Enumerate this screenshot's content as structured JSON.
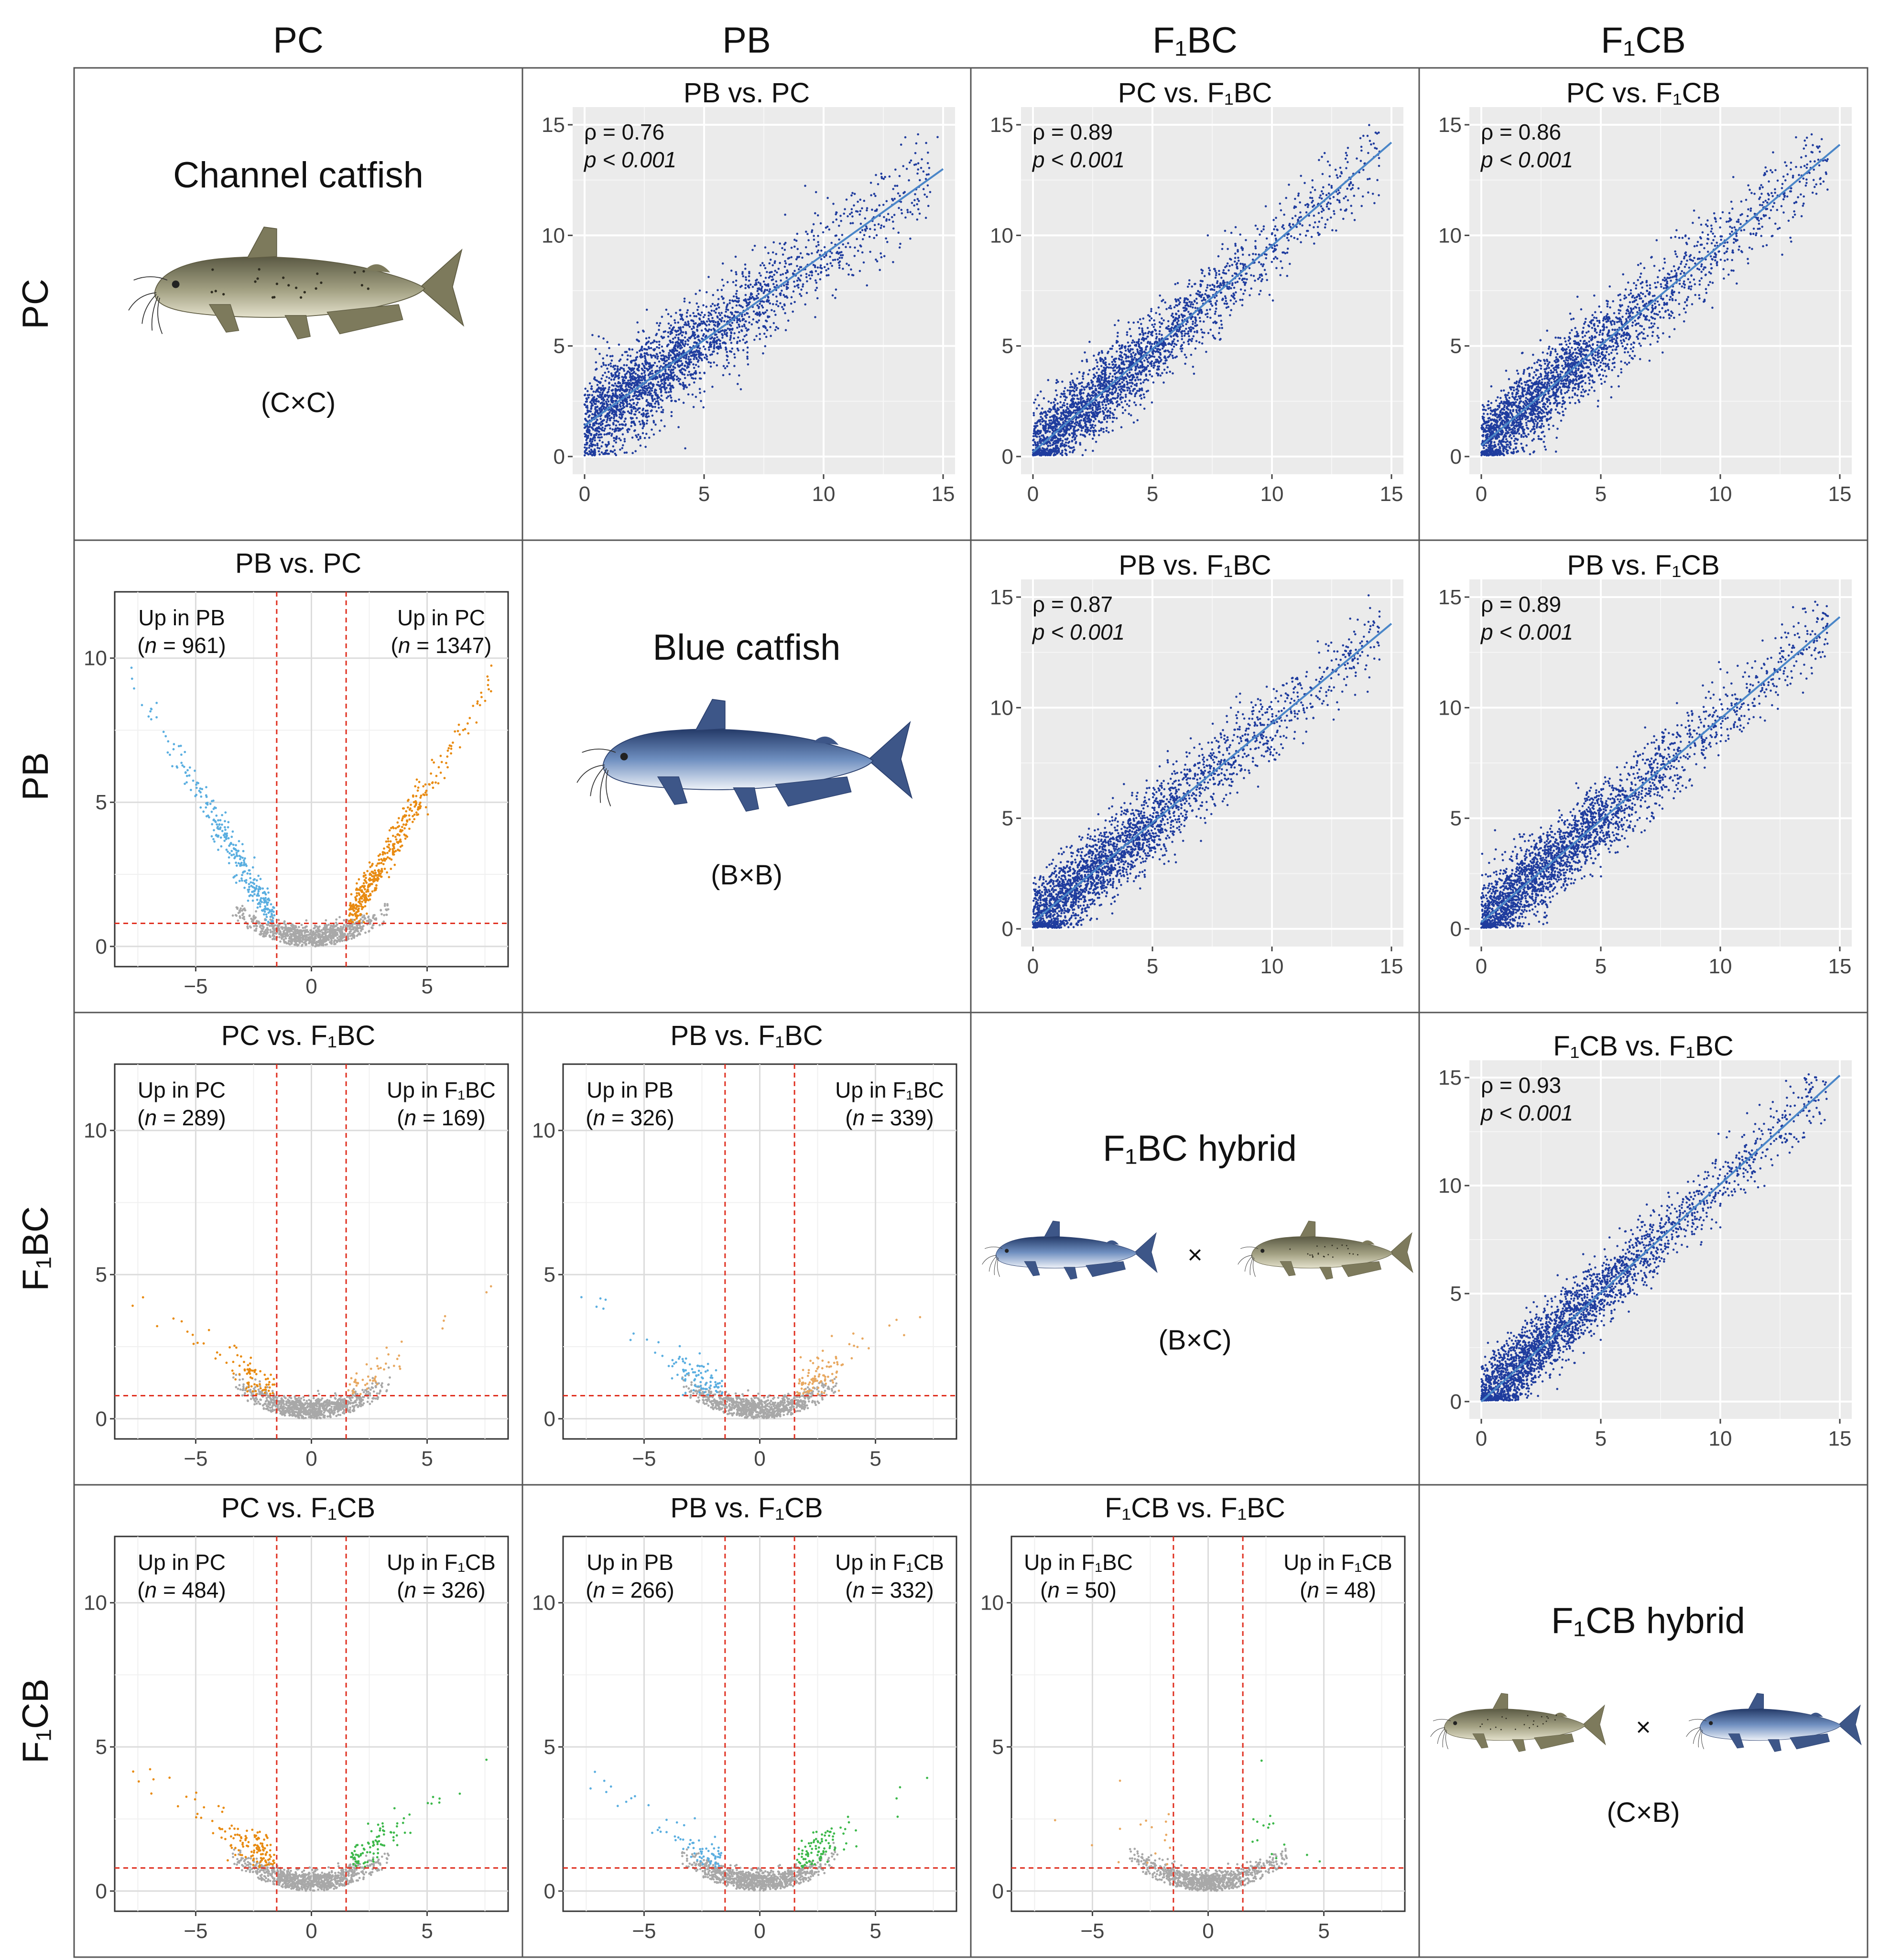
{
  "figure": {
    "column_headers": [
      "PC",
      "PB",
      "F₁BC",
      "F₁CB"
    ],
    "row_headers": [
      "PC",
      "PB",
      "F₁BC",
      "F₁CB"
    ]
  },
  "species": [
    {
      "name": "Channel catfish",
      "cross": "(C×C)",
      "fish": [
        "channel-catfish"
      ]
    },
    {
      "name": "Blue catfish",
      "cross": "(B×B)",
      "fish": [
        "blue-catfish"
      ]
    },
    {
      "name": "F₁BC hybrid",
      "cross": "(B×C)",
      "fish": [
        "blue-catfish",
        "channel-catfish"
      ],
      "times": "×"
    },
    {
      "name": "F₁CB hybrid",
      "cross": "(C×B)",
      "fish": [
        "channel-catfish",
        "blue-catfish"
      ],
      "times": "×"
    }
  ],
  "colors": {
    "panel_bg": "#ebebeb",
    "scatter_points": "#1f3c9e",
    "fit_line": "#4a86c8",
    "volcano_up_blue": "#5aaee0",
    "volcano_up_orange": "#e88a10",
    "volcano_up_green": "#3cb84a",
    "volcano_ns": "#a8a8a8",
    "threshold_line": "#e03020"
  },
  "chart_data": [
    {
      "id": "PB-vs-PC",
      "type": "scatter",
      "title": "PB vs. PC",
      "row": 0,
      "col": 1,
      "stats": [
        "ρ = 0.76",
        "p < 0.001"
      ],
      "rho": 0.76,
      "p": "< 0.001",
      "xlim": [
        -0.5,
        15.5
      ],
      "ylim": [
        -0.8,
        15.8
      ],
      "x_ticks": [
        0,
        5,
        10,
        15
      ],
      "x_tick_labels": [
        "0",
        "5",
        "10",
        "15"
      ],
      "y_ticks": [
        0,
        5,
        10,
        15
      ],
      "y_tick_labels": [
        "0",
        "5",
        "10",
        "15"
      ],
      "fit": [
        [
          0,
          1.4
        ],
        [
          15,
          13
        ]
      ]
    },
    {
      "id": "PC-vs-F1BC",
      "type": "scatter",
      "title": "PC vs. F₁BC",
      "row": 0,
      "col": 2,
      "stats": [
        "ρ = 0.89",
        "p < 0.001"
      ],
      "rho": 0.89,
      "p": "< 0.001",
      "xlim": [
        -0.5,
        15.5
      ],
      "ylim": [
        -0.8,
        15.8
      ],
      "x_ticks": [
        0,
        5,
        10,
        15
      ],
      "x_tick_labels": [
        "0",
        "5",
        "10",
        "15"
      ],
      "y_ticks": [
        0,
        5,
        10,
        15
      ],
      "y_tick_labels": [
        "0",
        "5",
        "10",
        "15"
      ],
      "fit": [
        [
          0,
          0.2
        ],
        [
          15,
          14.2
        ]
      ]
    },
    {
      "id": "PC-vs-F1CB",
      "type": "scatter",
      "title": "PC vs. F₁CB",
      "row": 0,
      "col": 3,
      "stats": [
        "ρ = 0.86",
        "p < 0.001"
      ],
      "rho": 0.86,
      "p": "< 0.001",
      "xlim": [
        -0.5,
        15.5
      ],
      "ylim": [
        -0.8,
        15.8
      ],
      "x_ticks": [
        0,
        5,
        10,
        15
      ],
      "x_tick_labels": [
        "0",
        "5",
        "10",
        "15"
      ],
      "y_ticks": [
        0,
        5,
        10,
        15
      ],
      "y_tick_labels": [
        "0",
        "5",
        "10",
        "15"
      ],
      "fit": [
        [
          0,
          0.5
        ],
        [
          15,
          14.1
        ]
      ]
    },
    {
      "id": "PB-vs-F1BC",
      "type": "scatter",
      "title": "PB vs. F₁BC",
      "row": 1,
      "col": 2,
      "stats": [
        "ρ = 0.87",
        "p < 0.001"
      ],
      "rho": 0.87,
      "p": "< 0.001",
      "xlim": [
        -0.5,
        15.5
      ],
      "ylim": [
        -0.8,
        15.8
      ],
      "x_ticks": [
        0,
        5,
        10,
        15
      ],
      "x_tick_labels": [
        "0",
        "5",
        "10",
        "15"
      ],
      "y_ticks": [
        0,
        5,
        10,
        15
      ],
      "y_tick_labels": [
        "0",
        "5",
        "10",
        "15"
      ],
      "fit": [
        [
          0,
          0.3
        ],
        [
          15,
          13.8
        ]
      ]
    },
    {
      "id": "PB-vs-F1CB",
      "type": "scatter",
      "title": "PB vs. F₁CB",
      "row": 1,
      "col": 3,
      "stats": [
        "ρ = 0.89",
        "p < 0.001"
      ],
      "rho": 0.89,
      "p": "< 0.001",
      "xlim": [
        -0.5,
        15.5
      ],
      "ylim": [
        -0.8,
        15.8
      ],
      "x_ticks": [
        0,
        5,
        10,
        15
      ],
      "x_tick_labels": [
        "0",
        "5",
        "10",
        "15"
      ],
      "y_ticks": [
        0,
        5,
        10,
        15
      ],
      "y_tick_labels": [
        "0",
        "5",
        "10",
        "15"
      ],
      "fit": [
        [
          0,
          0.3
        ],
        [
          15,
          14.1
        ]
      ]
    },
    {
      "id": "F1CB-vs-F1BC-scatter",
      "type": "scatter",
      "title": "F₁CB vs. F₁BC",
      "row": 2,
      "col": 3,
      "stats": [
        "ρ = 0.93",
        "p < 0.001"
      ],
      "rho": 0.93,
      "p": "< 0.001",
      "xlim": [
        -0.5,
        15.5
      ],
      "ylim": [
        -0.8,
        15.8
      ],
      "x_ticks": [
        0,
        5,
        10,
        15
      ],
      "x_tick_labels": [
        "0",
        "5",
        "10",
        "15"
      ],
      "y_ticks": [
        0,
        5,
        10,
        15
      ],
      "y_tick_labels": [
        "0",
        "5",
        "10",
        "15"
      ],
      "fit": [
        [
          0,
          0.0
        ],
        [
          15,
          15.1
        ]
      ]
    },
    {
      "id": "volcano-PB-vs-PC",
      "type": "volcano",
      "title": "PB vs. PC",
      "row": 1,
      "col": 0,
      "xlim": [
        -8.5,
        8.5
      ],
      "ylim": [
        -0.7,
        12.3
      ],
      "x_ticks": [
        -5,
        0,
        5
      ],
      "x_tick_labels": [
        "−5",
        "0",
        "5"
      ],
      "y_ticks": [
        0,
        5,
        10
      ],
      "y_tick_labels": [
        "0",
        "5",
        "10"
      ],
      "fc_threshold": 1.5,
      "sig_threshold": 0.8,
      "left_label": "Up in PB",
      "left_n": 961,
      "right_label": "Up in PC",
      "right_n": 1347,
      "left_count_text": [
        "(",
        "n",
        " = 961)"
      ],
      "right_count_text": [
        "(",
        "n",
        " = 1347)"
      ],
      "left_color": "#5aaee0",
      "right_color": "#e88a10"
    },
    {
      "id": "volcano-PC-vs-F1BC",
      "type": "volcano",
      "title": "PC vs. F₁BC",
      "row": 2,
      "col": 0,
      "xlim": [
        -8.5,
        8.5
      ],
      "ylim": [
        -0.7,
        12.3
      ],
      "x_ticks": [
        -5,
        0,
        5
      ],
      "x_tick_labels": [
        "−5",
        "0",
        "5"
      ],
      "y_ticks": [
        0,
        5,
        10
      ],
      "y_tick_labels": [
        "0",
        "5",
        "10"
      ],
      "fc_threshold": 1.5,
      "sig_threshold": 0.8,
      "left_label": "Up in PC",
      "left_n": 289,
      "right_label": "Up in F₁BC",
      "right_n": 169,
      "left_count_text": [
        "(",
        "n",
        " = 289)"
      ],
      "right_count_text": [
        "(",
        "n",
        " = 169)"
      ],
      "left_color": "#e88a10",
      "right_color": "#e8a860"
    },
    {
      "id": "volcano-PB-vs-F1BC",
      "type": "volcano",
      "title": "PB vs. F₁BC",
      "row": 2,
      "col": 1,
      "xlim": [
        -8.5,
        8.5
      ],
      "ylim": [
        -0.7,
        12.3
      ],
      "x_ticks": [
        -5,
        0,
        5
      ],
      "x_tick_labels": [
        "−5",
        "0",
        "5"
      ],
      "y_ticks": [
        0,
        5,
        10
      ],
      "y_tick_labels": [
        "0",
        "5",
        "10"
      ],
      "fc_threshold": 1.5,
      "sig_threshold": 0.8,
      "left_label": "Up in PB",
      "left_n": 326,
      "right_label": "Up in F₁BC",
      "right_n": 339,
      "left_count_text": [
        "(",
        "n",
        " = 326)"
      ],
      "right_count_text": [
        "(",
        "n",
        " = 339)"
      ],
      "left_color": "#5aaee0",
      "right_color": "#e8a860"
    },
    {
      "id": "volcano-PC-vs-F1CB",
      "type": "volcano",
      "title": "PC vs. F₁CB",
      "row": 3,
      "col": 0,
      "xlim": [
        -8.5,
        8.5
      ],
      "ylim": [
        -0.7,
        12.3
      ],
      "x_ticks": [
        -5,
        0,
        5
      ],
      "x_tick_labels": [
        "−5",
        "0",
        "5"
      ],
      "y_ticks": [
        0,
        5,
        10
      ],
      "y_tick_labels": [
        "0",
        "5",
        "10"
      ],
      "fc_threshold": 1.5,
      "sig_threshold": 0.8,
      "left_label": "Up in PC",
      "left_n": 484,
      "right_label": "Up in F₁CB",
      "right_n": 326,
      "left_count_text": [
        "(",
        "n",
        " = 484)"
      ],
      "right_count_text": [
        "(",
        "n",
        " = 326)"
      ],
      "left_color": "#e88a10",
      "right_color": "#3cb84a"
    },
    {
      "id": "volcano-PB-vs-F1CB",
      "type": "volcano",
      "title": "PB vs. F₁CB",
      "row": 3,
      "col": 1,
      "xlim": [
        -8.5,
        8.5
      ],
      "ylim": [
        -0.7,
        12.3
      ],
      "x_ticks": [
        -5,
        0,
        5
      ],
      "x_tick_labels": [
        "−5",
        "0",
        "5"
      ],
      "y_ticks": [
        0,
        5,
        10
      ],
      "y_tick_labels": [
        "0",
        "5",
        "10"
      ],
      "fc_threshold": 1.5,
      "sig_threshold": 0.8,
      "left_label": "Up in PB",
      "left_n": 266,
      "right_label": "Up in F₁CB",
      "right_n": 332,
      "left_count_text": [
        "(",
        "n",
        " = 266)"
      ],
      "right_count_text": [
        "(",
        "n",
        " = 332)"
      ],
      "left_color": "#5aaee0",
      "right_color": "#3cb84a"
    },
    {
      "id": "volcano-F1CB-vs-F1BC",
      "type": "volcano",
      "title": "F₁CB vs. F₁BC",
      "row": 3,
      "col": 2,
      "xlim": [
        -8.5,
        8.5
      ],
      "ylim": [
        -0.7,
        12.3
      ],
      "x_ticks": [
        -5,
        0,
        5
      ],
      "x_tick_labels": [
        "−5",
        "0",
        "5"
      ],
      "y_ticks": [
        0,
        5,
        10
      ],
      "y_tick_labels": [
        "0",
        "5",
        "10"
      ],
      "fc_threshold": 1.5,
      "sig_threshold": 0.8,
      "left_label": "Up in F₁BC",
      "left_n": 50,
      "right_label": "Up in F₁CB",
      "right_n": 48,
      "left_count_text": [
        "(",
        "n",
        " = 50)"
      ],
      "right_count_text": [
        "(",
        "n",
        " = 48)"
      ],
      "left_color": "#e8a860",
      "right_color": "#3cb84a"
    }
  ]
}
